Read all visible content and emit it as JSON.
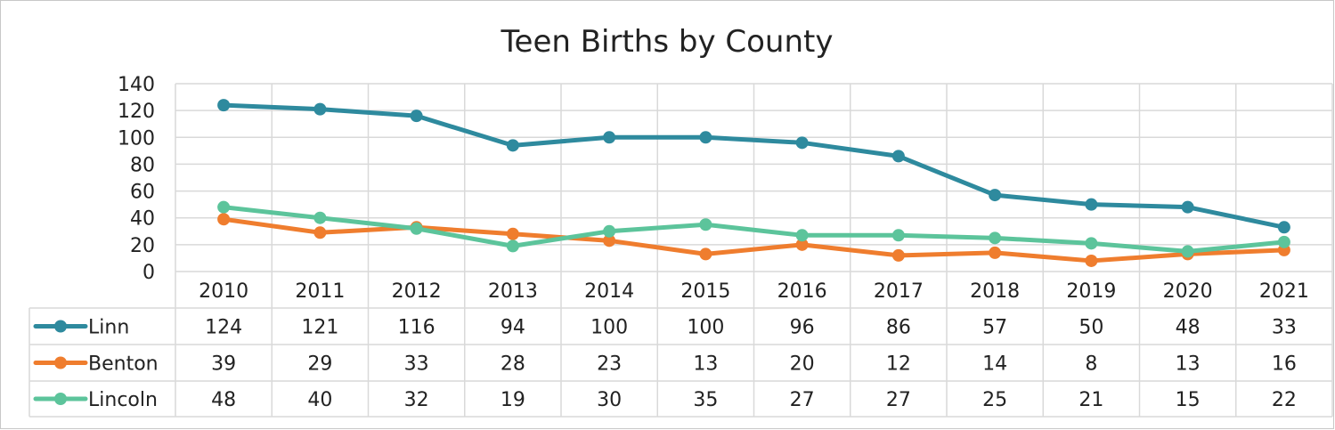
{
  "chart_data": {
    "type": "line",
    "title": "Teen Births by County",
    "categories": [
      "2010",
      "2011",
      "2012",
      "2013",
      "2014",
      "2015",
      "2016",
      "2017",
      "2018",
      "2019",
      "2020",
      "2021"
    ],
    "ylim": [
      0,
      140
    ],
    "yticks": [
      0,
      20,
      40,
      60,
      80,
      100,
      120,
      140
    ],
    "grid": true,
    "data_table": true,
    "series": [
      {
        "name": "Linn",
        "color": "#2e8a9e",
        "values": [
          124,
          121,
          116,
          94,
          100,
          100,
          96,
          86,
          57,
          50,
          48,
          33
        ]
      },
      {
        "name": "Benton",
        "color": "#ef7d2e",
        "values": [
          39,
          29,
          33,
          28,
          23,
          13,
          20,
          12,
          14,
          8,
          13,
          16
        ]
      },
      {
        "name": "Lincoln",
        "color": "#5cc49b",
        "values": [
          48,
          40,
          32,
          19,
          30,
          35,
          27,
          27,
          25,
          21,
          15,
          22
        ]
      }
    ]
  }
}
